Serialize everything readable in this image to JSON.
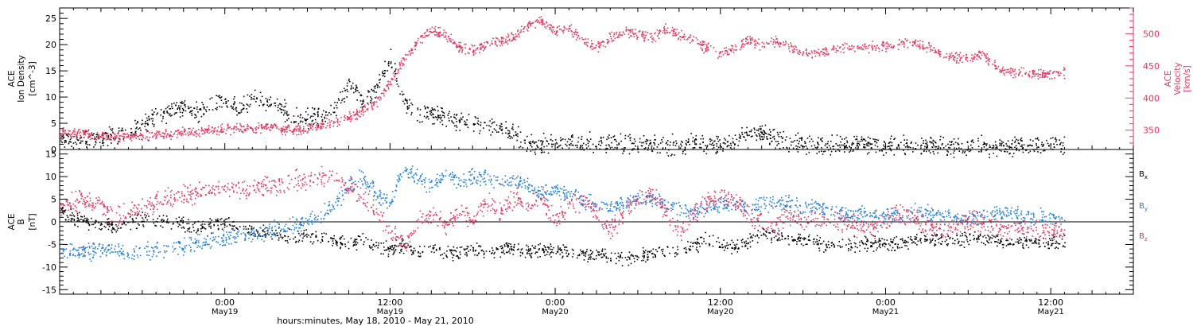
{
  "colors": {
    "black": "#000000",
    "pink": "#e8365d",
    "blue": "#1f7fe0",
    "axis": "#000000"
  },
  "x_axis": {
    "ticks": [
      {
        "t": 12,
        "time": "0:00",
        "day": "May19"
      },
      {
        "t": 24,
        "time": "12:00",
        "day": "May19"
      },
      {
        "t": 36,
        "time": "0:00",
        "day": "May20"
      },
      {
        "t": 48,
        "time": "12:00",
        "day": "May20"
      },
      {
        "t": 60,
        "time": "0:00",
        "day": "May21"
      },
      {
        "t": 72,
        "time": "12:00",
        "day": "May21"
      }
    ],
    "label": "hours:minutes, May 18, 2010 - May 21, 2010"
  },
  "chart_data": [
    {
      "type": "scatter",
      "title": "",
      "x_range_hours_since_2010-05-18T12:00": [
        0,
        78
      ],
      "ylabel_left": [
        "ACE",
        "Ion Density",
        "[cm^-3]"
      ],
      "ylabel_right": [
        "ACE",
        "Velocity",
        "[km/s]"
      ],
      "ylim_left": [
        0,
        27
      ],
      "ylim_right": [
        320,
        540
      ],
      "yticks_left": [
        0,
        5,
        10,
        15,
        20,
        25
      ],
      "yticks_right": [
        350,
        400,
        450,
        500
      ],
      "series": [
        {
          "name": "Ion Density",
          "color": "#000000",
          "axis": "left",
          "x": [
            0,
            1,
            2,
            3,
            4,
            5,
            6,
            7,
            8,
            9,
            10,
            11,
            12,
            13,
            14,
            15,
            16,
            17,
            18,
            19,
            20,
            21,
            22,
            23,
            24,
            25,
            26,
            27,
            28,
            29,
            30,
            31,
            32,
            33,
            34,
            35,
            36,
            37,
            38,
            39,
            40,
            41,
            42,
            43,
            44,
            45,
            46,
            47,
            48,
            49,
            50,
            51,
            52,
            53,
            54,
            55,
            56,
            57,
            58,
            59,
            60,
            61,
            62,
            63,
            64,
            65,
            66,
            67,
            68,
            69,
            70,
            71,
            72,
            73
          ],
          "y": [
            2.5,
            2.0,
            1.8,
            2.2,
            3.0,
            3.5,
            5.0,
            6.5,
            7.5,
            8.0,
            7.0,
            8.5,
            9.0,
            8.0,
            10.0,
            9.0,
            8.0,
            6.5,
            6.0,
            6.5,
            8.0,
            12.0,
            9.0,
            12.0,
            18.0,
            9.0,
            7.0,
            7.0,
            6.5,
            5.5,
            5.0,
            4.5,
            4.0,
            3.0,
            1.2,
            1.0,
            1.5,
            1.6,
            1.5,
            1.4,
            1.2,
            1.1,
            1.1,
            1.2,
            1.0,
            1.0,
            1.5,
            1.0,
            1.2,
            1.3,
            3.5,
            3.0,
            2.0,
            1.5,
            1.2,
            1.1,
            1.0,
            1.1,
            1.2,
            1.0,
            0.8,
            0.9,
            1.0,
            0.9,
            0.8,
            0.7,
            0.8,
            0.8,
            0.7,
            0.7,
            0.8,
            0.7,
            0.8,
            0.8
          ]
        },
        {
          "name": "Velocity",
          "color": "#e8365d",
          "axis": "right",
          "x": [
            0,
            1,
            2,
            3,
            4,
            5,
            6,
            7,
            8,
            9,
            10,
            11,
            12,
            13,
            14,
            15,
            16,
            17,
            18,
            19,
            20,
            21,
            22,
            23,
            24,
            25,
            26,
            27,
            28,
            29,
            30,
            31,
            32,
            33,
            34,
            35,
            36,
            37,
            38,
            39,
            40,
            41,
            42,
            43,
            44,
            45,
            46,
            47,
            48,
            49,
            50,
            51,
            52,
            53,
            54,
            55,
            56,
            57,
            58,
            59,
            60,
            61,
            62,
            63,
            64,
            65,
            66,
            67,
            68,
            69,
            70,
            71,
            72,
            73
          ],
          "y": [
            347,
            346,
            345,
            342,
            340,
            341,
            342,
            343,
            345,
            347,
            348,
            350,
            352,
            354,
            355,
            356,
            353,
            350,
            352,
            358,
            365,
            370,
            380,
            395,
            425,
            460,
            490,
            505,
            500,
            480,
            475,
            485,
            490,
            495,
            515,
            520,
            505,
            510,
            490,
            480,
            495,
            505,
            500,
            495,
            510,
            500,
            490,
            478,
            470,
            478,
            490,
            482,
            490,
            480,
            470,
            470,
            475,
            480,
            478,
            480,
            482,
            484,
            486,
            480,
            470,
            465,
            460,
            470,
            450,
            440,
            440,
            438,
            438,
            440
          ]
        }
      ]
    },
    {
      "type": "scatter",
      "title": "",
      "x_range_hours_since_2010-05-18T12:00": [
        0,
        78
      ],
      "ylabel_left": [
        "ACE",
        "B",
        "[nT]"
      ],
      "ylim": [
        -16,
        16
      ],
      "yticks": [
        -15,
        -10,
        -5,
        0,
        5,
        10,
        15
      ],
      "zero_line": true,
      "legend": [
        {
          "name": "Bx",
          "base": "B",
          "sub": "x",
          "color": "#000000"
        },
        {
          "name": "By",
          "base": "B",
          "sub": "y",
          "color": "#1f7fe0"
        },
        {
          "name": "Bz",
          "base": "B",
          "sub": "z",
          "color": "#e8365d"
        }
      ],
      "series": [
        {
          "name": "Bx",
          "color": "#000000",
          "x": [
            0,
            1,
            2,
            3,
            4,
            5,
            6,
            7,
            8,
            9,
            10,
            11,
            12,
            13,
            14,
            15,
            16,
            17,
            18,
            19,
            20,
            21,
            22,
            23,
            24,
            25,
            26,
            27,
            28,
            29,
            30,
            31,
            32,
            33,
            34,
            35,
            36,
            37,
            38,
            39,
            40,
            41,
            42,
            43,
            44,
            45,
            46,
            47,
            48,
            49,
            50,
            51,
            52,
            53,
            54,
            55,
            56,
            57,
            58,
            59,
            60,
            61,
            62,
            63,
            64,
            65,
            66,
            67,
            68,
            69,
            70,
            71,
            72,
            73
          ],
          "y": [
            2.5,
            1.0,
            0.0,
            -0.5,
            -1.0,
            0.0,
            0.5,
            1.0,
            0.0,
            -0.5,
            -1.0,
            -0.5,
            0.0,
            -1.0,
            -2.0,
            -2.5,
            -3.0,
            -3.5,
            -3.0,
            -3.5,
            -4.0,
            -5.0,
            -4.0,
            -5.0,
            -6.0,
            -5.0,
            -7.0,
            -6.0,
            -6.5,
            -7.0,
            -6.0,
            -6.5,
            -6.0,
            -5.5,
            -6.5,
            -6.0,
            -6.0,
            -6.5,
            -7.0,
            -7.0,
            -7.5,
            -8.0,
            -7.5,
            -7.0,
            -6.0,
            -6.5,
            -5.0,
            -4.0,
            -5.0,
            -5.5,
            -4.0,
            -2.0,
            -3.0,
            -3.5,
            -4.0,
            -4.5,
            -5.0,
            -5.0,
            -4.8,
            -4.5,
            -4.8,
            -4.5,
            -4.0,
            -4.0,
            -3.8,
            -4.0,
            -3.5,
            -3.5,
            -4.0,
            -4.5,
            -4.5,
            -4.5,
            -4.3,
            -4.4
          ]
        },
        {
          "name": "By",
          "color": "#1f7fe0",
          "x": [
            0,
            1,
            2,
            3,
            4,
            5,
            6,
            7,
            8,
            9,
            10,
            11,
            12,
            13,
            14,
            15,
            16,
            17,
            18,
            19,
            20,
            21,
            22,
            23,
            24,
            25,
            26,
            27,
            28,
            29,
            30,
            31,
            32,
            33,
            34,
            35,
            36,
            37,
            38,
            39,
            40,
            41,
            42,
            43,
            44,
            45,
            46,
            47,
            48,
            49,
            50,
            51,
            52,
            53,
            54,
            55,
            56,
            57,
            58,
            59,
            60,
            61,
            62,
            63,
            64,
            65,
            66,
            67,
            68,
            69,
            70,
            71,
            72,
            73
          ],
          "y": [
            -6.0,
            -6.5,
            -6.5,
            -6.0,
            -6.5,
            -7.0,
            -6.5,
            -6.0,
            -5.5,
            -5.0,
            -4.5,
            -4.0,
            -3.5,
            -3.0,
            -2.5,
            -2.0,
            -1.0,
            -0.5,
            0.0,
            2.0,
            4.0,
            8.0,
            10.0,
            6.0,
            4.0,
            12.0,
            10.0,
            8.0,
            11.0,
            9.0,
            10.0,
            10.0,
            9.0,
            9.5,
            8.0,
            6.0,
            7.0,
            6.0,
            5.0,
            4.0,
            3.0,
            4.0,
            5.0,
            5.5,
            4.0,
            3.0,
            2.0,
            3.0,
            4.0,
            4.0,
            3.0,
            4.0,
            4.5,
            4.0,
            3.5,
            3.5,
            3.0,
            2.0,
            2.0,
            1.5,
            1.0,
            1.5,
            2.0,
            2.0,
            1.5,
            1.0,
            1.0,
            1.5,
            2.0,
            2.0,
            1.5,
            1.0,
            1.0,
            0.5
          ]
        },
        {
          "name": "Bz",
          "color": "#e8365d",
          "x": [
            0,
            1,
            2,
            3,
            4,
            5,
            6,
            7,
            8,
            9,
            10,
            11,
            12,
            13,
            14,
            15,
            16,
            17,
            18,
            19,
            20,
            21,
            22,
            23,
            24,
            25,
            26,
            27,
            28,
            29,
            30,
            31,
            32,
            33,
            34,
            35,
            36,
            37,
            38,
            39,
            40,
            41,
            42,
            43,
            44,
            45,
            46,
            47,
            48,
            49,
            50,
            51,
            52,
            53,
            54,
            55,
            56,
            57,
            58,
            59,
            60,
            61,
            62,
            63,
            64,
            65,
            66,
            67,
            68,
            69,
            70,
            71,
            72,
            73
          ],
          "y": [
            3.0,
            4.5,
            5.0,
            3.0,
            1.5,
            2.0,
            3.0,
            4.5,
            5.5,
            6.0,
            6.5,
            7.0,
            7.5,
            7.0,
            7.5,
            8.0,
            8.5,
            9.0,
            9.5,
            10.0,
            10.0,
            8.0,
            6.0,
            2.0,
            -2.0,
            -5.0,
            0.0,
            2.0,
            -1.0,
            3.0,
            0.0,
            5.0,
            2.0,
            5.5,
            4.0,
            6.0,
            0.0,
            4.0,
            5.0,
            2.0,
            -2.0,
            2.0,
            5.0,
            6.0,
            3.0,
            -3.0,
            2.0,
            5.0,
            6.0,
            5.0,
            2.0,
            0.0,
            -1.0,
            2.0,
            0.0,
            1.0,
            1.0,
            0.0,
            -1.0,
            -1.5,
            0.0,
            2.0,
            1.0,
            -1.0,
            -2.0,
            -1.0,
            0.0,
            0.5,
            -1.0,
            -1.5,
            -1.0,
            -1.5,
            -1.8,
            -1.7
          ]
        }
      ]
    }
  ]
}
